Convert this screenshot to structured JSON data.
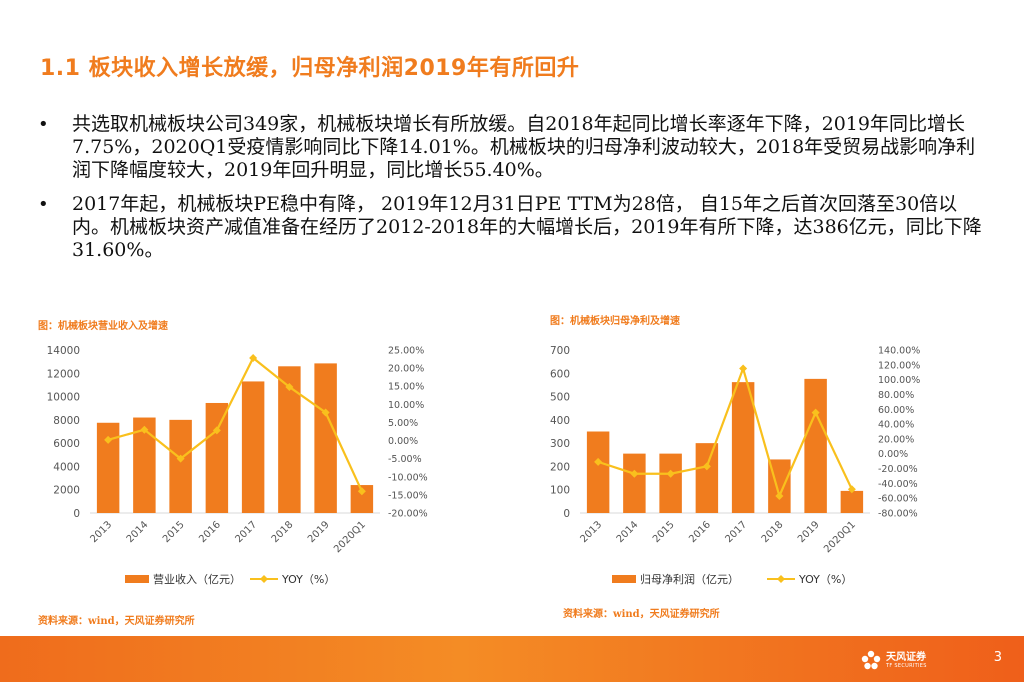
{
  "slide": {
    "title": "1.1 板块收入增长放缓，归母净利润2019年有所回升",
    "bullets": [
      "共选取机械板块公司349家，机械板块增长有所放缓。自2018年起同比增长率逐年下降，2019年同比增长7.75%，2020Q1受疫情影响同比下降14.01%。机械板块的归母净利波动较大，2018年受贸易战影响净利润下降幅度较大，2019年回升明显，同比增长55.40%。",
      "2017年起，机械板块PE稳中有降， 2019年12月31日PE TTM为28倍， 自15年之后首次回落至30倍以内。机械板块资产减值准备在经历了2012-2018年的大幅增长后，2019年有所下降，达386亿元，同比下降31.60%。"
    ],
    "bullet_glyph": "•",
    "page_number": "3",
    "brand_cn": "天风证券",
    "brand_en": "TF SECURITIES"
  },
  "colors": {
    "accent": "#f07c1e",
    "bar": "#f07c1e",
    "line": "#f9c01d",
    "axis_text": "#555555",
    "grid": "#d9d9d9"
  },
  "chart_data": [
    {
      "type": "bar",
      "caption": "图：机械板块营业收入及增速",
      "source": "资料来源：wind，天风证券研究所",
      "categories": [
        "2013",
        "2014",
        "2015",
        "2016",
        "2017",
        "2018",
        "2019",
        "2020Q1"
      ],
      "series": [
        {
          "name": "营业收入（亿元）",
          "type": "bar",
          "axis": "left",
          "values": [
            7750,
            8200,
            8000,
            9450,
            11300,
            12600,
            12850,
            2400
          ]
        },
        {
          "name": "YOY（%）",
          "type": "line",
          "axis": "right",
          "values": [
            0.2,
            3.0,
            -5.0,
            2.8,
            22.8,
            14.8,
            7.75,
            -14.01
          ]
        }
      ],
      "left_axis": {
        "min": 0,
        "max": 14000,
        "step": 2000,
        "ticks": [
          "0",
          "2000",
          "4000",
          "6000",
          "8000",
          "10000",
          "12000",
          "14000"
        ]
      },
      "right_axis": {
        "min": -20,
        "max": 25,
        "step": 5,
        "ticks": [
          "-20.00%",
          "-15.00%",
          "-10.00%",
          "-5.00%",
          "0.00%",
          "5.00%",
          "10.00%",
          "15.00%",
          "20.00%",
          "25.00%"
        ]
      },
      "legend": [
        "营业收入（亿元）",
        "YOY（%）"
      ],
      "legend_position": "bottom"
    },
    {
      "type": "bar",
      "caption": "图：机械板块归母净利及增速",
      "source": "资料来源：wind，天风证券研究所",
      "categories": [
        "2013",
        "2014",
        "2015",
        "2016",
        "2017",
        "2018",
        "2019",
        "2020Q1"
      ],
      "series": [
        {
          "name": "归母净利润（亿元）",
          "type": "bar",
          "axis": "left",
          "values": [
            350,
            255,
            255,
            300,
            562,
            230,
            576,
            95
          ]
        },
        {
          "name": "YOY（%）",
          "type": "line",
          "axis": "right",
          "values": [
            -11,
            -27,
            -27,
            -17,
            115,
            -57,
            55.4,
            -48
          ]
        }
      ],
      "left_axis": {
        "min": 0,
        "max": 700,
        "step": 100,
        "ticks": [
          "0",
          "100",
          "200",
          "300",
          "400",
          "500",
          "600",
          "700"
        ]
      },
      "right_axis": {
        "min": -80,
        "max": 140,
        "step": 20,
        "ticks": [
          "-80.00%",
          "-60.00%",
          "-40.00%",
          "-20.00%",
          "0.00%",
          "20.00%",
          "40.00%",
          "60.00%",
          "80.00%",
          "100.00%",
          "120.00%",
          "140.00%"
        ]
      },
      "legend": [
        "归母净利润（亿元）",
        "YOY（%）"
      ],
      "legend_position": "bottom"
    }
  ]
}
